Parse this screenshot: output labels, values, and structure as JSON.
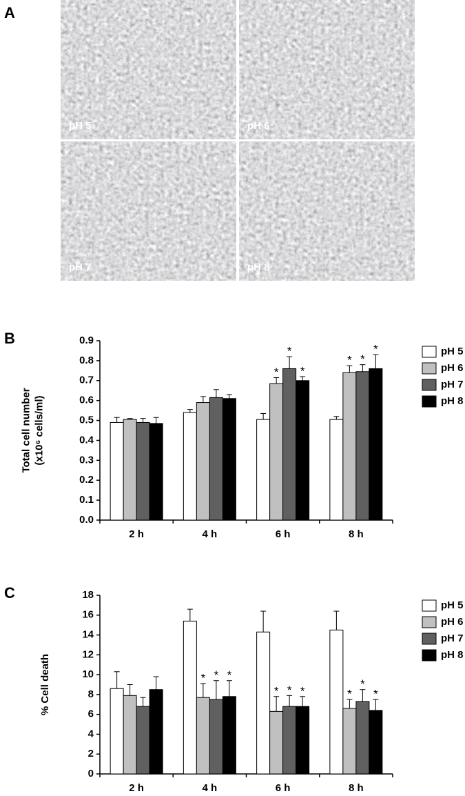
{
  "panel_a": {
    "label": "A",
    "images": [
      {
        "label": "pH 5"
      },
      {
        "label": "pH 6"
      },
      {
        "label": "pH 7"
      },
      {
        "label": "pH 8"
      }
    ]
  },
  "chart_data": [
    {
      "type": "bar",
      "panel_label": "B",
      "ylabel": [
        "Total cell number",
        "(x10⁶ cells/ml)"
      ],
      "categories": [
        "2 h",
        "4 h",
        "6 h",
        "8 h"
      ],
      "series": [
        {
          "name": "pH 5",
          "color": "#ffffff",
          "values": [
            0.49,
            0.54,
            0.505,
            0.505
          ],
          "errors": [
            0.025,
            0.015,
            0.03,
            0.015
          ],
          "significance": [
            null,
            null,
            null,
            null
          ]
        },
        {
          "name": "pH 6",
          "color": "#c0c0c0",
          "values": [
            0.505,
            0.59,
            0.685,
            0.74
          ],
          "errors": [
            0.005,
            0.03,
            0.03,
            0.035
          ],
          "significance": [
            null,
            null,
            "*",
            "*"
          ]
        },
        {
          "name": "pH 7",
          "color": "#606060",
          "values": [
            0.49,
            0.615,
            0.76,
            0.745
          ],
          "errors": [
            0.02,
            0.04,
            0.06,
            0.035
          ],
          "significance": [
            null,
            null,
            "*",
            "*"
          ]
        },
        {
          "name": "pH 8",
          "color": "#000000",
          "values": [
            0.485,
            0.61,
            0.7,
            0.76
          ],
          "errors": [
            0.03,
            0.02,
            0.02,
            0.07
          ],
          "significance": [
            null,
            null,
            "*",
            "*"
          ]
        }
      ],
      "ylim": [
        0,
        0.9
      ],
      "yticks": [
        {
          "value": 0,
          "label": "0.0"
        },
        0.1,
        0.2,
        0.3,
        0.4,
        0.5,
        0.6,
        0.7,
        0.8,
        0.9
      ],
      "legend": "right"
    },
    {
      "type": "bar",
      "panel_label": "C",
      "ylabel": [
        "% Cell death"
      ],
      "categories": [
        "2 h",
        "4 h",
        "6 h",
        "8 h"
      ],
      "series": [
        {
          "name": "pH 5",
          "color": "#ffffff",
          "values": [
            8.6,
            15.4,
            14.3,
            14.5
          ],
          "errors": [
            1.7,
            1.2,
            2.1,
            1.9
          ],
          "significance": [
            null,
            null,
            null,
            null
          ]
        },
        {
          "name": "pH 6",
          "color": "#c0c0c0",
          "values": [
            7.9,
            7.7,
            6.3,
            6.6
          ],
          "errors": [
            1.1,
            1.4,
            1.5,
            0.9
          ],
          "significance": [
            null,
            "*",
            "*",
            "*"
          ]
        },
        {
          "name": "pH 7",
          "color": "#606060",
          "values": [
            6.8,
            7.5,
            6.8,
            7.3
          ],
          "errors": [
            0.9,
            1.9,
            1.1,
            1.2
          ],
          "significance": [
            null,
            "*",
            "*",
            "*"
          ]
        },
        {
          "name": "pH 8",
          "color": "#000000",
          "values": [
            8.5,
            7.8,
            6.8,
            6.4
          ],
          "errors": [
            1.3,
            1.6,
            1.0,
            1.1
          ],
          "significance": [
            null,
            "*",
            "*",
            "*"
          ]
        }
      ],
      "ylim": [
        0,
        18
      ],
      "yticks": [
        0,
        2,
        4,
        6,
        8,
        10,
        12,
        14,
        16,
        18
      ],
      "legend": "right"
    }
  ]
}
